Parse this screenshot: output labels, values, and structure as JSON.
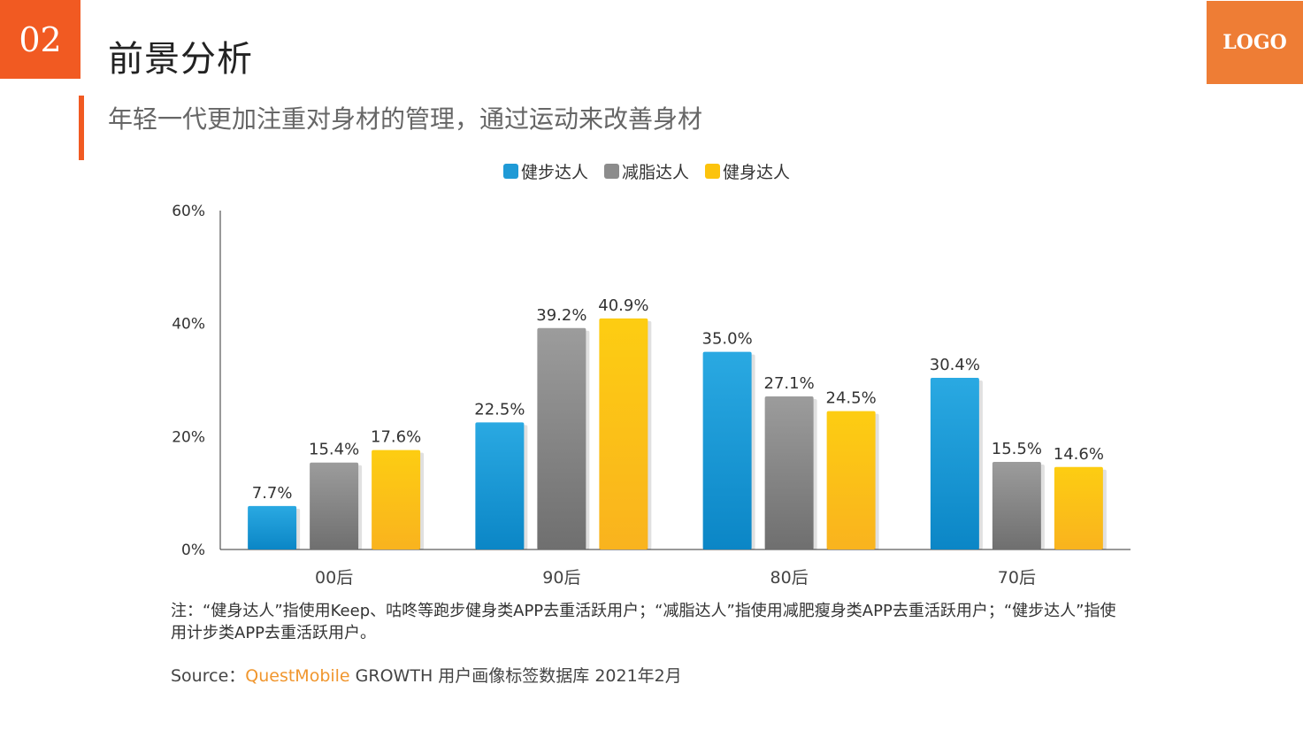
{
  "header": {
    "section_number": "02",
    "title": "前景分析",
    "logo": "LOGO",
    "subtitle": "年轻一代更加注重对身材的管理，通过运动来改善身材"
  },
  "colors": {
    "accent": "#f15a22",
    "logo_bg": "#ee7d35",
    "series_blue": "#1f9ad6",
    "series_gray": "#8c8c8c",
    "series_yellow": "#fcc30c"
  },
  "chart_data": {
    "type": "bar",
    "categories": [
      "00后",
      "90后",
      "80后",
      "70后"
    ],
    "series": [
      {
        "name": "健步达人",
        "values": [
          7.7,
          22.5,
          35.0,
          30.4
        ]
      },
      {
        "name": "减脂达人",
        "values": [
          15.4,
          39.2,
          27.1,
          15.5
        ]
      },
      {
        "name": "健身达人",
        "values": [
          17.6,
          40.9,
          24.5,
          14.6
        ]
      }
    ],
    "data_labels": [
      [
        "7.7%",
        "22.5%",
        "35.0%",
        "30.4%"
      ],
      [
        "15.4%",
        "39.2%",
        "27.1%",
        "15.5%"
      ],
      [
        "17.6%",
        "40.9%",
        "24.5%",
        "14.6%"
      ]
    ],
    "yticks": [
      "0%",
      "20%",
      "40%",
      "60%"
    ],
    "ytick_values": [
      0,
      20,
      40,
      60
    ],
    "ylim": [
      0,
      60
    ],
    "grid": false,
    "legend_position": "top-center"
  },
  "footer": {
    "note": "注：“健身达人”指使用Keep、咕咚等跑步健身类APP去重活跃用户；“减脂达人”指使用减肥瘦身类APP去重活跃用户；“健步达人”指使用计步类APP去重活跃用户。",
    "source_prefix": "Source：",
    "source_brand": "QuestMobile",
    "source_rest": " GROWTH 用户画像标签数据库 2021年2月"
  }
}
